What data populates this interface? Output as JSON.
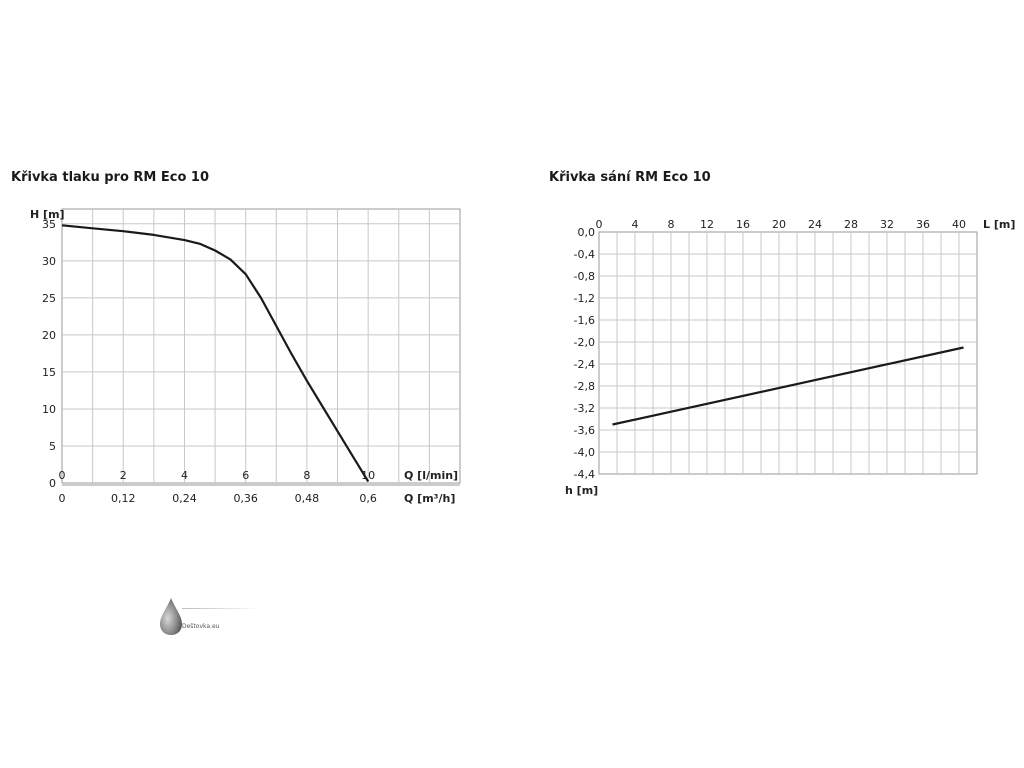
{
  "chart_data": [
    {
      "type": "line",
      "title": "Křivka tlaku pro RM Eco 10",
      "ylabel": "H [m]",
      "xlabel": "Q [l/min]",
      "x2label": "Q [m³/h]",
      "ylim": [
        0,
        37
      ],
      "xlim": [
        0,
        13
      ],
      "grid": true,
      "y_ticks": [
        "0",
        "5",
        "10",
        "15",
        "20",
        "25",
        "30",
        "35"
      ],
      "x_ticks": [
        "0",
        "2",
        "4",
        "6",
        "8",
        "10"
      ],
      "x2_ticks": [
        "0",
        "0,12",
        "0,24",
        "0,36",
        "0,48",
        "0,6"
      ],
      "series": [
        {
          "x": [
            0,
            1,
            2,
            3,
            4,
            4.5,
            5,
            5.5,
            6,
            6.5,
            7,
            7.5,
            8,
            8.5,
            9,
            9.5,
            10
          ],
          "y": [
            34.8,
            34.4,
            34.0,
            33.5,
            32.8,
            32.3,
            31.4,
            30.2,
            28.2,
            25.0,
            21.2,
            17.4,
            13.8,
            10.4,
            7.0,
            3.6,
            0.2
          ]
        }
      ]
    },
    {
      "type": "line",
      "title": "Křivka sání RM Eco 10",
      "xlabel": "L [m]",
      "ylabel": "h [m]",
      "xlim": [
        0,
        42
      ],
      "ylim": [
        -4.4,
        0
      ],
      "grid": true,
      "x_ticks": [
        "0",
        "4",
        "8",
        "12",
        "16",
        "20",
        "24",
        "28",
        "32",
        "36",
        "40"
      ],
      "y_ticks": [
        "0,0",
        "-0,4",
        "-0,8",
        "-1,2",
        "-1,6",
        "-2,0",
        "-2,4",
        "-2,8",
        "-3,2",
        "-3,6",
        "-4,0",
        "-4,4"
      ],
      "series": [
        {
          "x": [
            1.5,
            40.5
          ],
          "y": [
            -3.5,
            -2.1
          ]
        }
      ]
    }
  ],
  "logo": {
    "text": "Deštovka.eu",
    "icon": "water-drop-icon"
  }
}
